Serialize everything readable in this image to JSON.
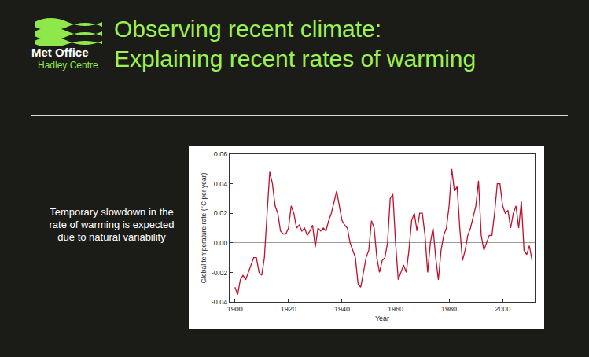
{
  "header": {
    "logo": [
      "Met Office",
      "Hadley Centre"
    ]
  },
  "chart_data": {
    "type": "line",
    "title": "Observing recent climate:",
    "subtitle": "Explaining recent rates of warming",
    "annotations": [
      "Temporary slowdown in the rate of warming is expected due to natural variability"
    ],
    "x_label": "Year",
    "y_label": "Global temperature rate (°C per year)",
    "color": "#c0102a",
    "grid": false,
    "x": [
      1900,
      1901,
      1902,
      1903,
      1904,
      1905,
      1906,
      1907,
      1908,
      1909,
      1910,
      1911,
      1912,
      1913,
      1914,
      1915,
      1916,
      1917,
      1918,
      1919,
      1920,
      1921,
      1922,
      1923,
      1924,
      1925,
      1926,
      1927,
      1928,
      1929,
      1930,
      1931,
      1932,
      1933,
      1934,
      1935,
      1936,
      1937,
      1938,
      1939,
      1940,
      1941,
      1942,
      1943,
      1944,
      1945,
      1946,
      1947,
      1948,
      1949,
      1950,
      1951,
      1952,
      1953,
      1954,
      1955,
      1956,
      1957,
      1958,
      1959,
      1960,
      1961,
      1962,
      1963,
      1964,
      1965,
      1966,
      1967,
      1968,
      1969,
      1970,
      1971,
      1972,
      1973,
      1974,
      1975,
      1976,
      1977,
      1978,
      1979,
      1980,
      1981,
      1982,
      1983,
      1984,
      1985,
      1986,
      1987,
      1988,
      1989,
      1990,
      1991,
      1992,
      1993,
      1994,
      1995,
      1996,
      1997,
      1998,
      1999,
      2000,
      2001,
      2002,
      2003,
      2004,
      2005,
      2006,
      2007,
      2008,
      2009,
      2010,
      2011
    ],
    "values": [
      -0.03,
      -0.035,
      -0.025,
      -0.022,
      -0.025,
      -0.02,
      -0.015,
      -0.01,
      -0.01,
      -0.02,
      -0.022,
      -0.01,
      0.02,
      0.048,
      0.04,
      0.025,
      0.02,
      0.008,
      0.006,
      0.006,
      0.01,
      0.025,
      0.02,
      0.01,
      0.012,
      0.008,
      0.01,
      0.005,
      0.008,
      0.012,
      -0.003,
      0.01,
      0.008,
      0.01,
      0.008,
      0.015,
      0.02,
      0.028,
      0.035,
      0.025,
      0.015,
      0.012,
      0.01,
      0.0,
      -0.005,
      -0.01,
      -0.028,
      -0.03,
      -0.02,
      -0.01,
      -0.005,
      0.015,
      0.01,
      -0.01,
      -0.02,
      -0.012,
      -0.01,
      0.0,
      0.03,
      0.033,
      0.0,
      -0.025,
      -0.02,
      -0.015,
      -0.02,
      -0.005,
      0.015,
      0.02,
      0.008,
      0.02,
      0.02,
      0.005,
      -0.02,
      0.0,
      0.01,
      -0.01,
      -0.025,
      -0.005,
      0.005,
      0.01,
      0.025,
      0.05,
      0.035,
      0.038,
      0.01,
      -0.012,
      -0.005,
      0.005,
      0.01,
      0.018,
      0.025,
      0.042,
      0.005,
      -0.005,
      0.0,
      0.005,
      0.005,
      0.02,
      0.04,
      0.04,
      0.025,
      0.02,
      0.022,
      0.01,
      0.02,
      0.025,
      0.01,
      0.028,
      -0.005,
      -0.008,
      -0.002,
      -0.012
    ],
    "xlim": [
      1898,
      2012
    ],
    "xticks": [
      1900,
      1920,
      1940,
      1960,
      1980,
      2000
    ],
    "ylim": [
      -0.04,
      0.06
    ],
    "yticks": [
      -0.04,
      -0.02,
      {
        "value": 0,
        "label": "0.00"
      },
      0.02,
      0.04,
      0.06
    ]
  }
}
